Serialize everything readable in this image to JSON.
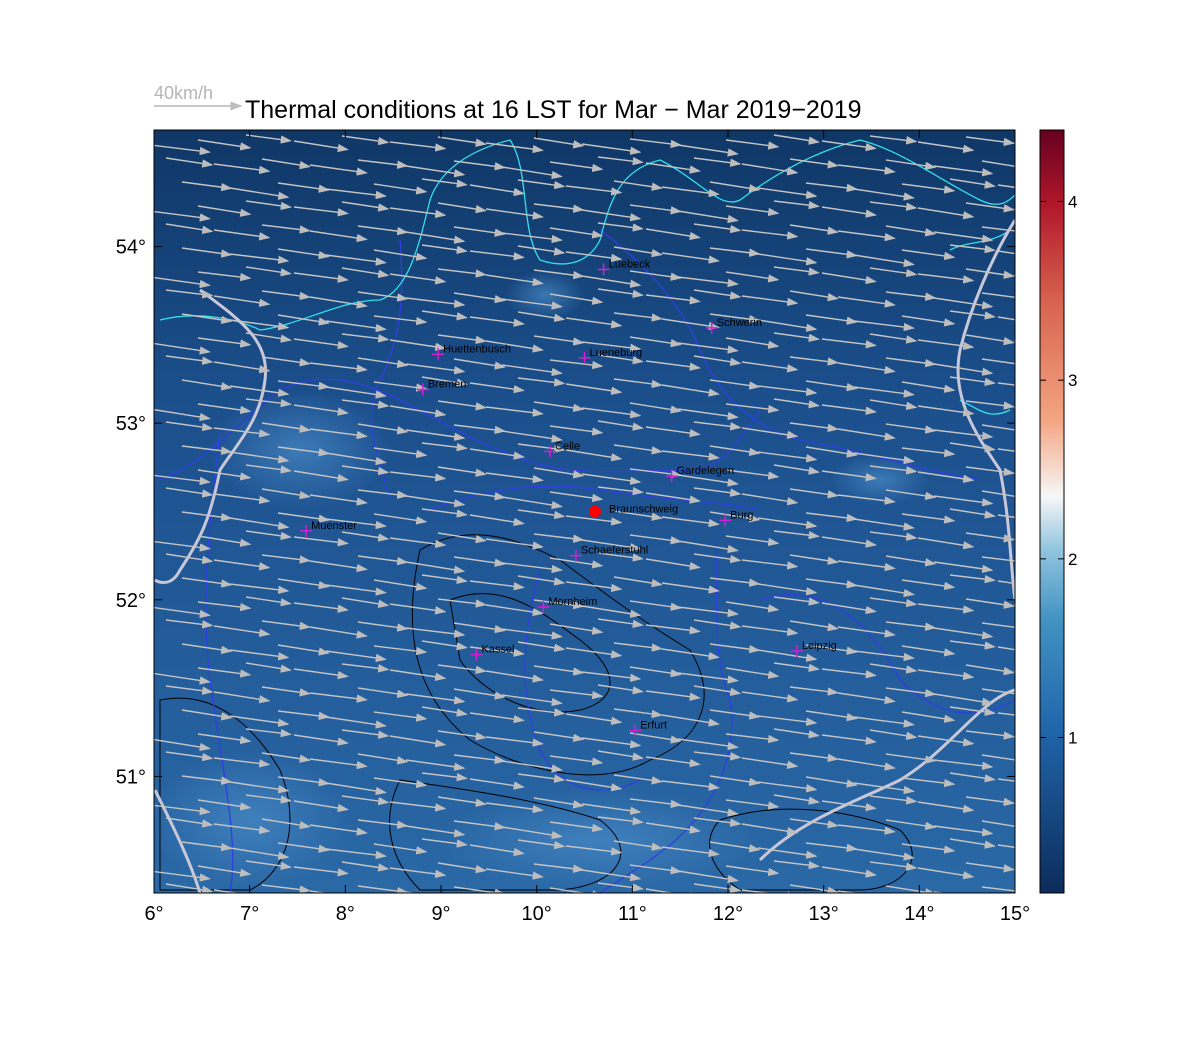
{
  "chart_data": {
    "type": "map",
    "title": "Thermal conditions at 16 LST for Mar − Mar  2019−2019",
    "wind_key": "40km/h",
    "xlim": [
      6,
      15
    ],
    "ylim": [
      50.34,
      54.66
    ],
    "xticks": [
      {
        "value": 6,
        "label": "6°"
      },
      {
        "value": 7,
        "label": "7°"
      },
      {
        "value": 8,
        "label": "8°"
      },
      {
        "value": 9,
        "label": "9°"
      },
      {
        "value": 10,
        "label": "10°"
      },
      {
        "value": 11,
        "label": "11°"
      },
      {
        "value": 12,
        "label": "12°"
      },
      {
        "value": 13,
        "label": "13°"
      },
      {
        "value": 14,
        "label": "14°"
      },
      {
        "value": 15,
        "label": "15°"
      }
    ],
    "yticks": [
      {
        "value": 51,
        "label": "51°"
      },
      {
        "value": 52,
        "label": "52°"
      },
      {
        "value": 53,
        "label": "53°"
      },
      {
        "value": 54,
        "label": "54°"
      }
    ],
    "colorbar": {
      "lim": [
        0.13,
        4.4
      ],
      "ticks": [
        1,
        2,
        3,
        4
      ]
    },
    "site": {
      "name": "Braunschweig",
      "lon": 10.61,
      "lat": 52.5
    },
    "places": [
      {
        "name": "Luebeck",
        "lon": 10.7,
        "lat": 53.87
      },
      {
        "name": "Schwerin",
        "lon": 11.83,
        "lat": 53.54
      },
      {
        "name": "Huettenbusch",
        "lon": 8.97,
        "lat": 53.39
      },
      {
        "name": "Lueneburg",
        "lon": 10.5,
        "lat": 53.37
      },
      {
        "name": "Bremen",
        "lon": 8.81,
        "lat": 53.19
      },
      {
        "name": "Celle",
        "lon": 10.14,
        "lat": 52.84
      },
      {
        "name": "Gardelegen",
        "lon": 11.41,
        "lat": 52.7
      },
      {
        "name": "Burg",
        "lon": 11.97,
        "lat": 52.45
      },
      {
        "name": "Muenster",
        "lon": 7.59,
        "lat": 52.39
      },
      {
        "name": "Schaeferstuhl",
        "lon": 10.41,
        "lat": 52.25
      },
      {
        "name": "Mornheim",
        "lon": 10.07,
        "lat": 51.96
      },
      {
        "name": "Kassel",
        "lon": 9.37,
        "lat": 51.69
      },
      {
        "name": "Leipzig",
        "lon": 12.72,
        "lat": 51.71
      },
      {
        "name": "Erfurt",
        "lon": 11.03,
        "lat": 51.26
      }
    ]
  }
}
